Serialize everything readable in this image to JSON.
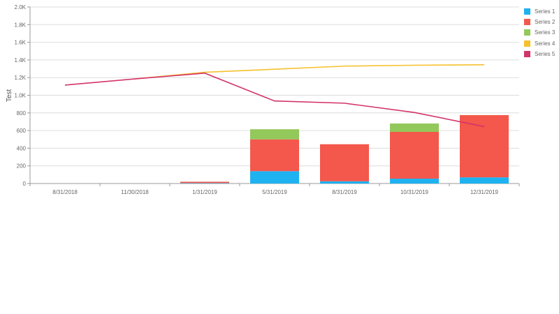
{
  "chart_data": {
    "type": "bar",
    "stacked": true,
    "title": "",
    "xlabel": "",
    "ylabel": "Test",
    "ylim": [
      0,
      2000
    ],
    "yticks": [
      "0",
      "200",
      "400",
      "600",
      "800",
      "1.0K",
      "1.2K",
      "1.4K",
      "1.6K",
      "1.8K",
      "2.0K"
    ],
    "ytick_values": [
      0,
      200,
      400,
      600,
      800,
      1000,
      1200,
      1400,
      1600,
      1800,
      2000
    ],
    "grid": true,
    "legend_position": "right",
    "categories": [
      "8/31/2018",
      "11/30/2018",
      "1/31/2019",
      "5/31/2019",
      "8/31/2019",
      "10/31/2019",
      "12/31/2019"
    ],
    "series": [
      {
        "name": "Series 1",
        "type": "bar",
        "color": "#1eb2f1",
        "values": [
          0,
          0,
          5,
          140,
          25,
          55,
          70
        ]
      },
      {
        "name": "Series 2",
        "type": "bar",
        "color": "#f4574b",
        "values": [
          0,
          0,
          15,
          360,
          420,
          530,
          705
        ]
      },
      {
        "name": "Series 3",
        "type": "bar",
        "color": "#93c85a",
        "values": [
          0,
          0,
          0,
          115,
          0,
          95,
          0
        ]
      },
      {
        "name": "Series 4",
        "type": "line",
        "color": "#f6c12d",
        "values": [
          null,
          1185,
          1260,
          1295,
          1330,
          1340,
          1345
        ]
      },
      {
        "name": "Series 5",
        "type": "line",
        "color": "#d2346c",
        "values": [
          1115,
          1185,
          1250,
          935,
          910,
          805,
          645
        ]
      }
    ]
  },
  "legend": {
    "items": [
      {
        "label": "Series 1",
        "color": "#1eb2f1"
      },
      {
        "label": "Series 2",
        "color": "#f4574b"
      },
      {
        "label": "Series 3",
        "color": "#93c85a"
      },
      {
        "label": "Series 4",
        "color": "#f6c12d"
      },
      {
        "label": "Series 5",
        "color": "#d2346c"
      }
    ]
  }
}
